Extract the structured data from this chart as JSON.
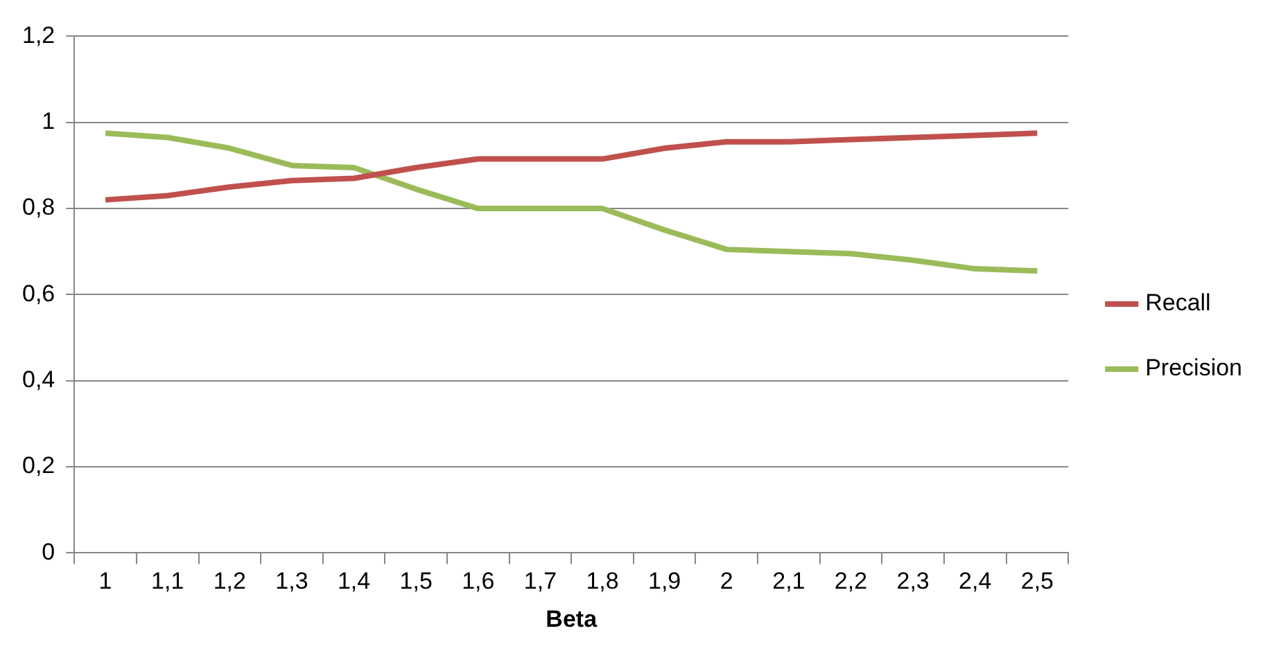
{
  "chart_data": {
    "type": "line",
    "xlabel": "Beta",
    "categories": [
      "1",
      "1,1",
      "1,2",
      "1,3",
      "1,4",
      "1,5",
      "1,6",
      "1,7",
      "1,8",
      "1,9",
      "2",
      "2,1",
      "2,2",
      "2,3",
      "2,4",
      "2,5"
    ],
    "series": [
      {
        "name": "Recall",
        "color": "#c0504d",
        "values": [
          0.82,
          0.83,
          0.85,
          0.865,
          0.87,
          0.895,
          0.915,
          0.915,
          0.915,
          0.94,
          0.955,
          0.955,
          0.96,
          0.965,
          0.97,
          0.975
        ]
      },
      {
        "name": "Precision",
        "color": "#9bbb59",
        "values": [
          0.975,
          0.965,
          0.94,
          0.9,
          0.895,
          0.845,
          0.8,
          0.8,
          0.8,
          0.75,
          0.705,
          0.7,
          0.695,
          0.68,
          0.66,
          0.655
        ]
      }
    ],
    "ylim": [
      0,
      1.2
    ],
    "yticks": [
      0,
      {
        "value": 0.2,
        "label": "0,2"
      },
      {
        "value": 0.4,
        "label": "0,4"
      },
      {
        "value": 0.6,
        "label": "0,6"
      },
      {
        "value": 0.8,
        "label": "0,8"
      },
      1,
      {
        "value": 1.2,
        "label": "1,2"
      }
    ],
    "grid": "y",
    "legend": "right",
    "marker": "none",
    "line_style": "solid"
  }
}
